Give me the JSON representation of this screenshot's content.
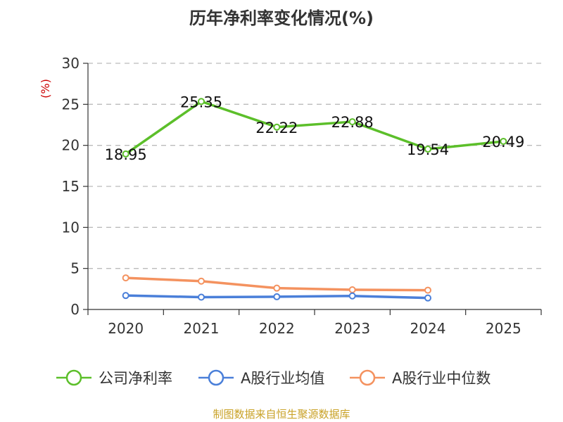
{
  "chart_data": {
    "type": "line",
    "title": "历年净利率变化情况(%)",
    "unit_label": "(%)",
    "categories": [
      "2020",
      "2021",
      "2022",
      "2023",
      "2024",
      "2025"
    ],
    "ylim": [
      0,
      30
    ],
    "yticks": [
      0,
      5,
      10,
      15,
      20,
      25,
      30
    ],
    "grid": true,
    "legend_position": "bottom",
    "series": [
      {
        "name": "公司净利率",
        "color": "#5cbf2a",
        "values": [
          18.95,
          25.35,
          22.22,
          22.88,
          19.54,
          20.49
        ],
        "labels": [
          "18.95",
          "25.35",
          "22.22",
          "22.88",
          "19.54",
          "20.49"
        ]
      },
      {
        "name": "A股行业均值",
        "color": "#4a7fd9",
        "values": [
          1.7,
          1.5,
          1.55,
          1.65,
          1.4,
          null
        ]
      },
      {
        "name": "A股行业中位数",
        "color": "#f4925f",
        "values": [
          3.85,
          3.45,
          2.6,
          2.4,
          2.35,
          null
        ]
      }
    ]
  },
  "source_note": "制图数据来自恒生聚源数据库"
}
